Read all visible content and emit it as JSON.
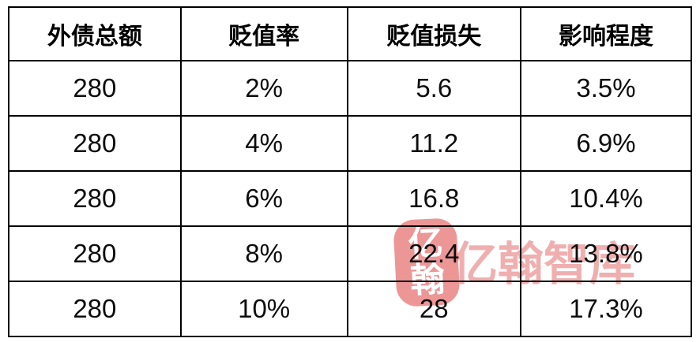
{
  "chart_data": {
    "type": "table",
    "title": "",
    "columns": [
      "外债总额",
      "贬值率",
      "贬值损失",
      "影响程度"
    ],
    "rows": [
      [
        "280",
        "2%",
        "5.6",
        "3.5%"
      ],
      [
        "280",
        "4%",
        "11.2",
        "6.9%"
      ],
      [
        "280",
        "6%",
        "16.8",
        "10.4%"
      ],
      [
        "280",
        "8%",
        "22.4",
        "13.8%"
      ],
      [
        "280",
        "10%",
        "28",
        "17.3%"
      ]
    ]
  },
  "table": {
    "headers": [
      "外债总额",
      "贬值率",
      "贬值损失",
      "影响程度"
    ],
    "rows": [
      [
        "280",
        "2%",
        "5.6",
        "3.5%"
      ],
      [
        "280",
        "4%",
        "11.2",
        "6.9%"
      ],
      [
        "280",
        "6%",
        "16.8",
        "10.4%"
      ],
      [
        "280",
        "8%",
        "22.4",
        "13.8%"
      ],
      [
        "280",
        "10%",
        "28",
        "17.3%"
      ]
    ]
  },
  "watermark": {
    "brand_text": "亿翰智库",
    "seal_top_char": "亿",
    "seal_bottom_char": "翰",
    "text_color": "#e87f7f",
    "seal_color": "#e87f7f"
  },
  "colors": {
    "border": "#000000",
    "text": "#0d0d0d",
    "background": "#ffffff"
  }
}
